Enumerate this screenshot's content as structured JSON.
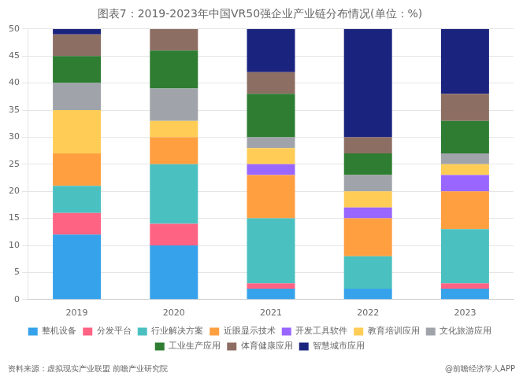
{
  "chart_data": {
    "type": "bar",
    "title": "图表7：2019-2023年中国VR50强企业产业链分布情况(单位：%)",
    "categories": [
      "2019",
      "2020",
      "2021",
      "2022",
      "2023"
    ],
    "series": [
      {
        "name": "整机设备",
        "color": "#36A2EB",
        "values": [
          12,
          10,
          2,
          2,
          2
        ]
      },
      {
        "name": "分发平台",
        "color": "#FF6384",
        "values": [
          4,
          4,
          1,
          0,
          1
        ]
      },
      {
        "name": "行业解决方案",
        "color": "#4BC0C0",
        "values": [
          5,
          11,
          12,
          6,
          10
        ]
      },
      {
        "name": "近眼显示技术",
        "color": "#FF9F40",
        "values": [
          6,
          5,
          8,
          7,
          7
        ]
      },
      {
        "name": "开发工具软件",
        "color": "#9966FF",
        "values": [
          0,
          0,
          2,
          2,
          3
        ]
      },
      {
        "name": "教育培训应用",
        "color": "#FFCD56",
        "values": [
          8,
          3,
          3,
          3,
          2
        ]
      },
      {
        "name": "文化旅游应用",
        "color": "#A0A4AA",
        "values": [
          5,
          6,
          2,
          3,
          2
        ]
      },
      {
        "name": "工业生产应用",
        "color": "#2E7D32",
        "values": [
          5,
          7,
          8,
          4,
          6
        ]
      },
      {
        "name": "体育健康应用",
        "color": "#8D6E63",
        "values": [
          4,
          4,
          4,
          3,
          5
        ]
      },
      {
        "name": "智慧城市应用",
        "color": "#1A237E",
        "values": [
          1,
          0,
          8,
          20,
          12
        ]
      }
    ],
    "ylim": [
      0,
      50
    ],
    "yticks": [
      0,
      5,
      10,
      15,
      20,
      25,
      30,
      35,
      40,
      45,
      50
    ],
    "stacked": true,
    "grid": true,
    "legend": "bottom",
    "annotations": [
      "资料来源：虚拟现实产业联盟 前瞻产业研究院",
      "@前瞻经济学人APP"
    ]
  }
}
